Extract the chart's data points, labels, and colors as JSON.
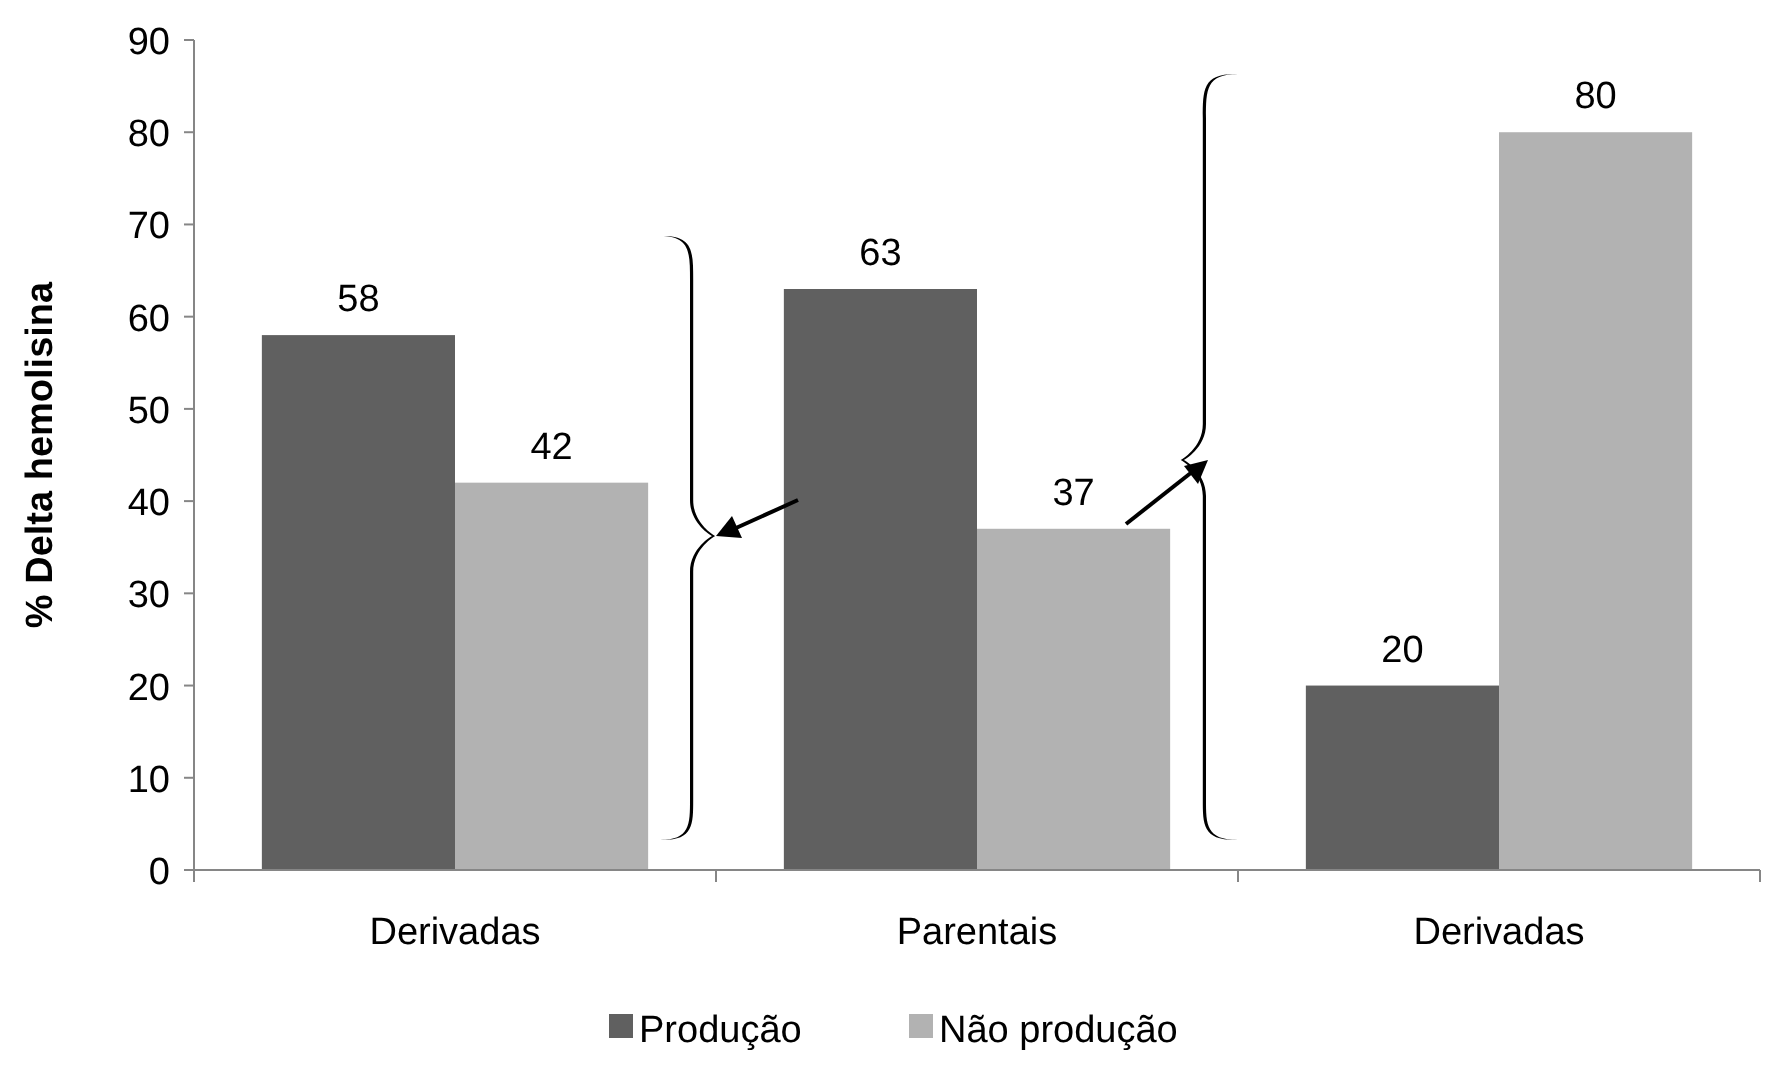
{
  "chart_data": {
    "type": "bar",
    "ylabel": "% Delta hemolisina",
    "categories": [
      "Derivadas",
      "Parentais",
      "Derivadas"
    ],
    "series": [
      {
        "name": "Produção",
        "color": "#606060",
        "values": [
          58,
          63,
          20
        ]
      },
      {
        "name": "Não produção",
        "color": "#b2b2b2",
        "values": [
          42,
          37,
          80
        ]
      }
    ],
    "ylim": [
      0,
      90
    ],
    "yticks": [
      0,
      10,
      20,
      30,
      40,
      50,
      60,
      70,
      80,
      90
    ],
    "data_labels": true,
    "grid": false,
    "legend": "bottom"
  }
}
